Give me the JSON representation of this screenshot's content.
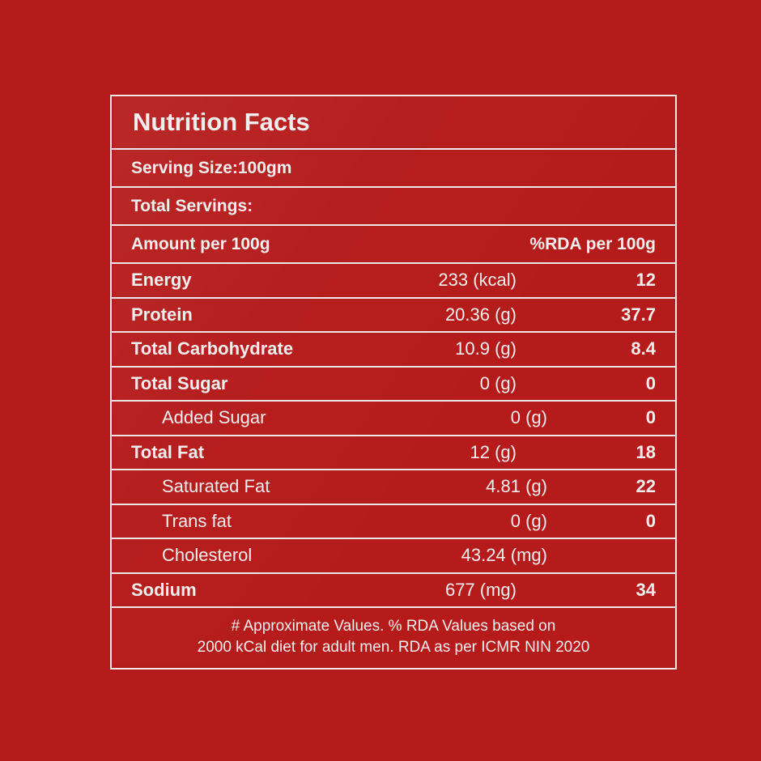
{
  "label": {
    "title": "Nutrition Facts",
    "serving_size": "Serving Size:100gm",
    "total_servings": "Total Servings:",
    "amount_header": "Amount per 100g",
    "rda_header": "%RDA per 100g",
    "nutrients": [
      {
        "name": "Energy",
        "amount": "233 (kcal)",
        "rda": "12"
      },
      {
        "name": "Protein",
        "amount": "20.36 (g)",
        "rda": "37.7"
      },
      {
        "name": "Total Carbohydrate",
        "amount": "10.9 (g)",
        "rda": "8.4"
      },
      {
        "name": "Total Sugar",
        "amount": "0 (g)",
        "rda": "0"
      },
      {
        "name": "Added Sugar",
        "amount": "0 (g)",
        "rda": "0"
      },
      {
        "name": "Total Fat",
        "amount": "12 (g)",
        "rda": "18"
      },
      {
        "name": "Saturated Fat",
        "amount": "4.81 (g)",
        "rda": "22"
      },
      {
        "name": "Trans fat",
        "amount": "0 (g)",
        "rda": "0"
      },
      {
        "name": "Cholesterol",
        "amount": "43.24 (mg)",
        "rda": ""
      },
      {
        "name": "Sodium",
        "amount": "677 (mg)",
        "rda": "34"
      }
    ],
    "footnote_line1": "# Approximate Values. % RDA Values based on",
    "footnote_line2": "2000 kCal diet for adult men. RDA as per ICMR NIN 2020"
  },
  "colors": {
    "background": "#b51b1b",
    "text": "#f3eeee"
  }
}
